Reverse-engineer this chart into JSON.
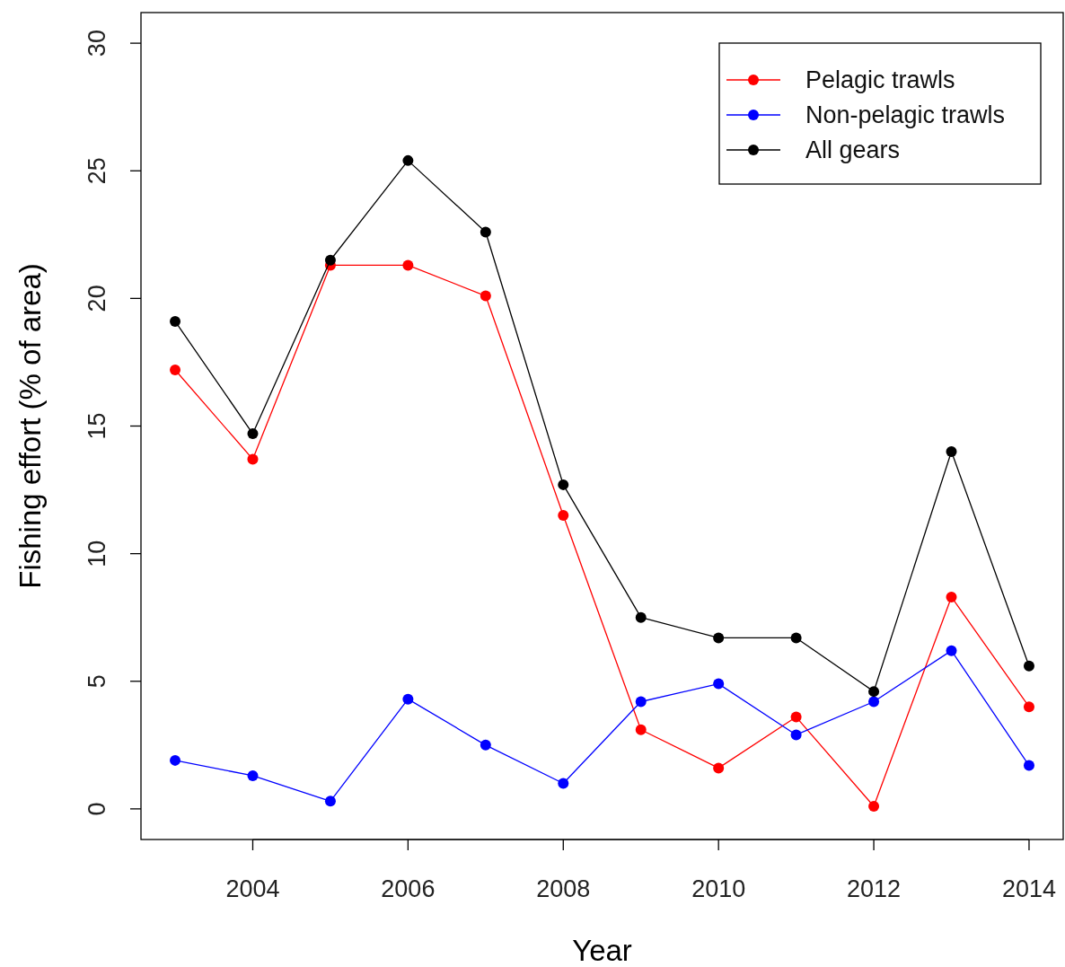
{
  "chart_data": {
    "type": "line",
    "xlabel": "Year",
    "ylabel": "Fishing effort (% of area)",
    "x": [
      2003,
      2004,
      2005,
      2006,
      2007,
      2008,
      2009,
      2010,
      2011,
      2012,
      2013,
      2014
    ],
    "series": [
      {
        "name": "Pelagic trawls",
        "color": "#ff0000",
        "values": [
          17.2,
          13.7,
          21.3,
          21.3,
          20.1,
          11.5,
          3.1,
          1.6,
          3.6,
          0.1,
          8.3,
          4.0
        ]
      },
      {
        "name": "Non-pelagic trawls",
        "color": "#0000ff",
        "values": [
          1.9,
          1.3,
          0.3,
          4.3,
          2.5,
          1.0,
          4.2,
          4.9,
          2.9,
          4.2,
          6.2,
          1.7
        ]
      },
      {
        "name": "All gears",
        "color": "#000000",
        "values": [
          19.1,
          14.7,
          21.5,
          25.4,
          22.6,
          12.7,
          7.5,
          6.7,
          6.7,
          4.6,
          14.0,
          5.6
        ]
      }
    ],
    "xlim": [
      2002.56,
      2014.44
    ],
    "ylim": [
      -1.2,
      31.2
    ],
    "xticks": [
      2004,
      2006,
      2008,
      2010,
      2012,
      2014
    ],
    "yticks": [
      0,
      5,
      10,
      15,
      20,
      25,
      30
    ],
    "grid": false,
    "legend": "top right",
    "marker": "circle",
    "line_style": "solid"
  }
}
